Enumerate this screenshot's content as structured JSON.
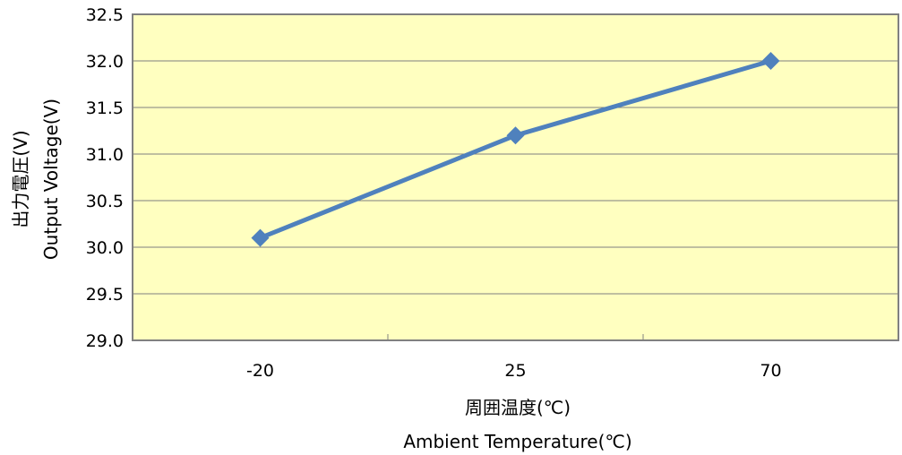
{
  "chart_data": {
    "type": "line",
    "categories": [
      "-20",
      "25",
      "70"
    ],
    "series": [
      {
        "values": [
          30.1,
          31.2,
          32.0
        ]
      }
    ],
    "ylim": [
      29.0,
      32.5
    ],
    "yticks": [
      "29.0",
      "29.5",
      "30.0",
      "30.5",
      "31.0",
      "31.5",
      "32.0",
      "32.5"
    ],
    "xlabel_ja": "周囲温度(℃)",
    "xlabel_en": "Ambient Temperature(℃)",
    "ylabel_ja": "出力電圧(V)",
    "ylabel_en": "Output  Voltage(V)",
    "grid": true,
    "marker": "diamond",
    "colors": {
      "plot_background": "#ffffc0",
      "series_line": "#4f81bd",
      "gridline": "#7f7f7f",
      "plot_border": "#808080"
    }
  }
}
